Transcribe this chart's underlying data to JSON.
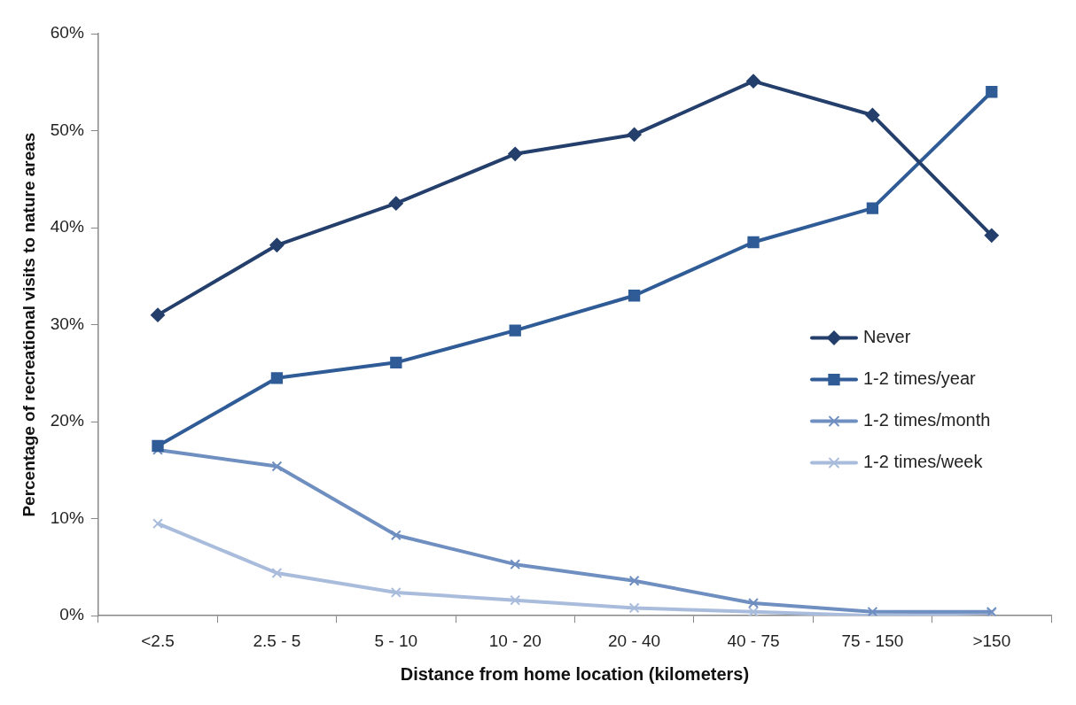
{
  "chart_data": {
    "type": "line",
    "xlabel": "Distance from home location (kilometers)",
    "ylabel": "Percentage of recreational visits to nature areas",
    "categories": [
      "<2.5",
      "2.5 - 5",
      "5 - 10",
      "10 - 20",
      "20 - 40",
      "40 - 75",
      "75 - 150",
      ">150"
    ],
    "series": [
      {
        "name": "Never",
        "color": "#243f6b",
        "marker": "diamond",
        "values": [
          31.0,
          38.2,
          42.5,
          47.6,
          49.6,
          55.1,
          51.6,
          39.2
        ]
      },
      {
        "name": "1-2 times/year",
        "color": "#2f5b96",
        "marker": "square",
        "values": [
          17.5,
          24.5,
          26.1,
          29.4,
          33.0,
          38.5,
          42.0,
          54.0
        ]
      },
      {
        "name": "1-2 times/month",
        "color": "#6f8fc1",
        "marker": "cross",
        "values": [
          17.1,
          15.4,
          8.3,
          5.3,
          3.6,
          1.3,
          0.4,
          0.4
        ]
      },
      {
        "name": "1-2 times/week",
        "color": "#a9bcdc",
        "marker": "cross",
        "values": [
          9.5,
          4.4,
          2.4,
          1.6,
          0.8,
          0.4,
          0.0,
          0.3
        ]
      }
    ],
    "ylim": [
      0,
      60
    ],
    "yticks": [
      {
        "value": 0,
        "label": "0%"
      },
      {
        "value": 10,
        "label": "10%"
      },
      {
        "value": 20,
        "label": "20%"
      },
      {
        "value": 30,
        "label": "30%"
      },
      {
        "value": 40,
        "label": "40%"
      },
      {
        "value": 50,
        "label": "50%"
      },
      {
        "value": 60,
        "label": "60%"
      }
    ],
    "grid": false,
    "legend": "right"
  }
}
